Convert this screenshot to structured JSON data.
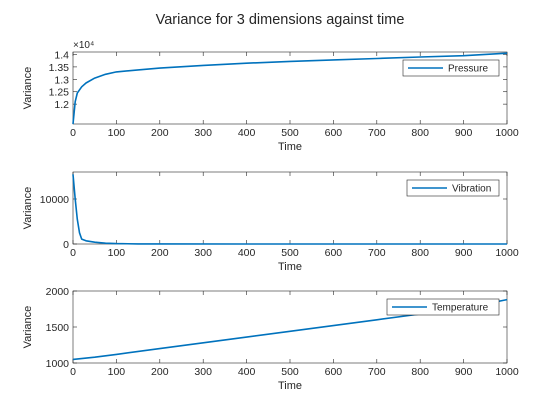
{
  "figure": {
    "title": "Variance for 3 dimensions against time"
  },
  "chart_data": [
    {
      "type": "line",
      "title": "",
      "xlabel": "Time",
      "ylabel": "Variance",
      "xlim": [
        0,
        1000
      ],
      "ylim": [
        11200,
        14100
      ],
      "x_ticks": [
        0,
        100,
        200,
        300,
        400,
        500,
        600,
        700,
        800,
        900,
        1000
      ],
      "x_tick_labels": [
        "0",
        "100",
        "200",
        "300",
        "400",
        "500",
        "600",
        "700",
        "800",
        "900",
        "1000"
      ],
      "y_ticks": [
        12000,
        12500,
        13000,
        13500,
        14000
      ],
      "y_tick_labels": [
        "1.2",
        "1.25",
        "1.3",
        "1.35",
        "1.4"
      ],
      "y_exponent_label": "×10⁴",
      "legend": "top-right",
      "grid": false,
      "color": "#0072BD",
      "series": [
        {
          "name": "Pressure",
          "x": [
            0,
            5,
            10,
            20,
            30,
            50,
            75,
            100,
            150,
            200,
            300,
            400,
            500,
            600,
            700,
            800,
            900,
            1000
          ],
          "values": [
            11200,
            12100,
            12450,
            12700,
            12850,
            13050,
            13200,
            13300,
            13380,
            13450,
            13560,
            13650,
            13720,
            13780,
            13840,
            13900,
            13950,
            14050
          ]
        }
      ]
    },
    {
      "type": "line",
      "title": "",
      "xlabel": "Time",
      "ylabel": "Variance",
      "xlim": [
        0,
        1000
      ],
      "ylim": [
        0,
        16000
      ],
      "x_ticks": [
        0,
        100,
        200,
        300,
        400,
        500,
        600,
        700,
        800,
        900,
        1000
      ],
      "x_tick_labels": [
        "0",
        "100",
        "200",
        "300",
        "400",
        "500",
        "600",
        "700",
        "800",
        "900",
        "1000"
      ],
      "y_ticks": [
        0,
        10000
      ],
      "y_tick_labels": [
        "0",
        "10000"
      ],
      "legend": "top-right",
      "grid": false,
      "color": "#0072BD",
      "series": [
        {
          "name": "Vibration",
          "x": [
            0,
            5,
            10,
            15,
            20,
            30,
            50,
            75,
            100,
            150,
            200,
            400,
            600,
            800,
            1000
          ],
          "values": [
            15500,
            10000,
            5500,
            2500,
            1100,
            700,
            400,
            180,
            80,
            30,
            15,
            5,
            3,
            2,
            2
          ]
        }
      ]
    },
    {
      "type": "line",
      "title": "",
      "xlabel": "Time",
      "ylabel": "Variance",
      "xlim": [
        0,
        1000
      ],
      "ylim": [
        1000,
        2000
      ],
      "x_ticks": [
        0,
        100,
        200,
        300,
        400,
        500,
        600,
        700,
        800,
        900,
        1000
      ],
      "x_tick_labels": [
        "0",
        "100",
        "200",
        "300",
        "400",
        "500",
        "600",
        "700",
        "800",
        "900",
        "1000"
      ],
      "y_ticks": [
        1000,
        1500,
        2000
      ],
      "y_tick_labels": [
        "1000",
        "1500",
        "2000"
      ],
      "legend": "top-right",
      "grid": false,
      "color": "#0072BD",
      "series": [
        {
          "name": "Temperature",
          "x": [
            0,
            50,
            100,
            200,
            300,
            400,
            500,
            600,
            700,
            800,
            900,
            1000
          ],
          "values": [
            1050,
            1080,
            1120,
            1200,
            1280,
            1360,
            1440,
            1520,
            1600,
            1680,
            1760,
            1880
          ]
        }
      ]
    }
  ]
}
